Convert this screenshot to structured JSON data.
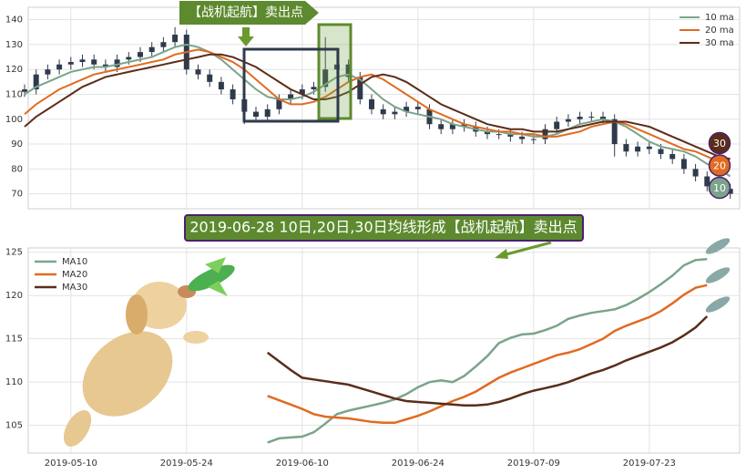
{
  "chart_data": [
    {
      "type": "candlestick",
      "ylim": [
        64,
        145
      ],
      "yticks": [
        70,
        80,
        90,
        100,
        110,
        120,
        130,
        140
      ],
      "grid": true,
      "legend": "upper right",
      "candle_color": "#2f3b4c",
      "ohlc": {
        "open": [
          111,
          112,
          118,
          120,
          122,
          123,
          124,
          122,
          121,
          124,
          125,
          127,
          129,
          131,
          134,
          120,
          118,
          115,
          112,
          108,
          103,
          101,
          104,
          108,
          110,
          112,
          113,
          120,
          122,
          117,
          108,
          104,
          102,
          103,
          105,
          104,
          98,
          96,
          98,
          97,
          95,
          94,
          94,
          93,
          92,
          92,
          96,
          99,
          100,
          101,
          101,
          100,
          90,
          87,
          89,
          88,
          86,
          84,
          80,
          77,
          73,
          72
        ],
        "high": [
          114,
          120,
          122,
          124,
          125,
          126,
          126,
          124,
          126,
          127,
          129,
          131,
          133,
          137,
          136,
          122,
          120,
          117,
          114,
          110,
          105,
          106,
          110,
          112,
          114,
          115,
          133,
          128,
          124,
          119,
          110,
          106,
          105,
          107,
          107,
          106,
          100,
          100,
          100,
          99,
          97,
          96,
          96,
          95,
          94,
          98,
          101,
          102,
          103,
          103,
          103,
          102,
          92,
          91,
          91,
          90,
          88,
          86,
          82,
          79,
          75,
          74
        ],
        "low": [
          109,
          110,
          116,
          118,
          120,
          121,
          120,
          119,
          119,
          122,
          123,
          125,
          127,
          129,
          118,
          116,
          113,
          110,
          106,
          98,
          99,
          99,
          102,
          106,
          108,
          110,
          111,
          118,
          115,
          106,
          102,
          100,
          100,
          101,
          102,
          96,
          94,
          94,
          95,
          93,
          92,
          92,
          91,
          90,
          90,
          90,
          94,
          97,
          98,
          99,
          98,
          85,
          85,
          85,
          86,
          84,
          82,
          78,
          75,
          71,
          68,
          68
        ],
        "close": [
          112,
          118,
          120,
          122,
          123,
          124,
          122,
          121,
          124,
          125,
          127,
          129,
          131,
          134,
          120,
          118,
          115,
          112,
          108,
          103,
          101,
          104,
          108,
          110,
          112,
          113,
          120,
          122,
          117,
          108,
          104,
          102,
          103,
          105,
          104,
          98,
          96,
          98,
          97,
          95,
          94,
          94,
          93,
          92,
          92,
          96,
          99,
          100,
          101,
          101,
          100,
          90,
          87,
          89,
          88,
          86,
          84,
          80,
          77,
          73,
          72,
          70
        ]
      },
      "series": [
        {
          "name": "10 ma",
          "color": "#7aa48a",
          "values": [
            110,
            113,
            115,
            117,
            119,
            120,
            121,
            121,
            122,
            123,
            124,
            125,
            127,
            129,
            130,
            129,
            127,
            124,
            120,
            116,
            112,
            109,
            108,
            108,
            109,
            111,
            114,
            117,
            118,
            116,
            112,
            108,
            105,
            103,
            102,
            101,
            100,
            98,
            97,
            96,
            95,
            95,
            94,
            94,
            93,
            93,
            94,
            96,
            98,
            99,
            100,
            99,
            97,
            94,
            91,
            89,
            88,
            87,
            85,
            82,
            80,
            77
          ]
        },
        {
          "name": "20 ma",
          "color": "#e06b21",
          "values": [
            102,
            106,
            109,
            112,
            114,
            116,
            118,
            119,
            120,
            121,
            122,
            123,
            124,
            126,
            127,
            128,
            127,
            125,
            123,
            120,
            116,
            112,
            108,
            106,
            106,
            107,
            109,
            112,
            115,
            117,
            118,
            116,
            113,
            110,
            107,
            104,
            102,
            100,
            98,
            97,
            96,
            95,
            95,
            94,
            94,
            93,
            93,
            94,
            95,
            97,
            98,
            99,
            98,
            96,
            94,
            92,
            90,
            88,
            87,
            85,
            83,
            81
          ]
        },
        {
          "name": "30 ma",
          "color": "#5a2d1a",
          "values": [
            97,
            101,
            104,
            107,
            110,
            113,
            115,
            117,
            118,
            119,
            120,
            121,
            122,
            123,
            124,
            125,
            126,
            126,
            125,
            123,
            121,
            118,
            115,
            112,
            110,
            108,
            108,
            109,
            111,
            114,
            117,
            118,
            117,
            115,
            112,
            109,
            106,
            104,
            102,
            100,
            98,
            97,
            96,
            96,
            95,
            95,
            95,
            96,
            97,
            98,
            99,
            99,
            99,
            98,
            97,
            95,
            93,
            91,
            89,
            87,
            85,
            84
          ]
        }
      ],
      "callout": "【战机起航】卖出点",
      "end_labels": [
        "30",
        "20",
        "10"
      ]
    },
    {
      "type": "line",
      "ylim": [
        101.8,
        125.5
      ],
      "yticks": [
        105,
        110,
        115,
        120,
        125
      ],
      "grid": true,
      "legend": "upper left",
      "categories": [
        null,
        null,
        null,
        null,
        "2019-05-10",
        null,
        null,
        null,
        null,
        null,
        null,
        null,
        null,
        null,
        "2019-05-24",
        null,
        null,
        null,
        null,
        null,
        null,
        null,
        null,
        null,
        "2019-06-10",
        null,
        null,
        null,
        null,
        null,
        null,
        null,
        null,
        null,
        "2019-06-24",
        null,
        null,
        null,
        null,
        null,
        null,
        null,
        null,
        null,
        "2019-07-09",
        null,
        null,
        null,
        null,
        null,
        null,
        null,
        null,
        null,
        "2019-07-23",
        null,
        null,
        null,
        null,
        null,
        null,
        null
      ],
      "series": [
        {
          "name": "MA10",
          "color": "#7aa48a",
          "values": [
            null,
            null,
            null,
            null,
            null,
            null,
            null,
            null,
            null,
            null,
            null,
            null,
            null,
            null,
            null,
            null,
            null,
            null,
            null,
            null,
            null,
            103.0,
            103.5,
            103.6,
            103.7,
            104.2,
            105.2,
            106.3,
            106.7,
            107.0,
            107.3,
            107.6,
            108.0,
            108.6,
            109.4,
            110.0,
            110.2,
            110.0,
            110.7,
            111.8,
            113.0,
            114.5,
            115.1,
            115.5,
            115.6,
            116.0,
            116.5,
            117.3,
            117.7,
            118.0,
            118.2,
            118.4,
            118.9,
            119.6,
            120.4,
            121.3,
            122.3,
            123.5,
            124.1,
            124.2,
            null,
            null
          ]
        },
        {
          "name": "MA20",
          "color": "#e06b21",
          "values": [
            null,
            null,
            null,
            null,
            null,
            null,
            null,
            null,
            null,
            null,
            null,
            null,
            null,
            null,
            null,
            null,
            null,
            null,
            null,
            null,
            null,
            108.4,
            107.9,
            107.4,
            106.9,
            106.3,
            106.0,
            105.9,
            105.8,
            105.6,
            105.4,
            105.3,
            105.3,
            105.7,
            106.1,
            106.6,
            107.2,
            107.8,
            108.3,
            108.9,
            109.7,
            110.5,
            111.1,
            111.6,
            112.1,
            112.6,
            113.1,
            113.4,
            113.8,
            114.4,
            115.0,
            115.9,
            116.5,
            117.0,
            117.5,
            118.2,
            119.1,
            120.1,
            120.9,
            121.2,
            null,
            null
          ]
        },
        {
          "name": "MA30",
          "color": "#5a2d1a",
          "values": [
            null,
            null,
            null,
            null,
            null,
            null,
            null,
            null,
            null,
            null,
            null,
            null,
            null,
            null,
            null,
            null,
            null,
            null,
            null,
            null,
            null,
            113.4,
            112.4,
            111.4,
            110.5,
            110.3,
            110.1,
            109.9,
            109.7,
            109.3,
            108.9,
            108.5,
            108.1,
            107.8,
            107.7,
            107.6,
            107.5,
            107.4,
            107.3,
            107.3,
            107.4,
            107.7,
            108.1,
            108.6,
            109.0,
            109.3,
            109.6,
            110.0,
            110.5,
            111.0,
            111.4,
            111.9,
            112.5,
            113.0,
            113.5,
            114.0,
            114.6,
            115.4,
            116.3,
            117.6,
            null,
            null
          ]
        }
      ],
      "annotation": "2019-06-28 10日,20日,30日均线形成【战机起航】卖出点"
    }
  ]
}
